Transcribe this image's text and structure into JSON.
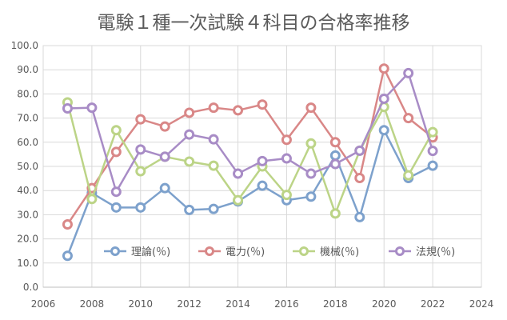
{
  "chart_data": {
    "type": "scatter",
    "title": "電験１種一次試験４科目の合格率推移",
    "xlim": [
      2006,
      2024
    ],
    "ylim": [
      0,
      100
    ],
    "x_ticks": [
      "2006",
      "2008",
      "2010",
      "2012",
      "2014",
      "2016",
      "2018",
      "2020",
      "2022",
      "2024"
    ],
    "y_ticks": [
      "0.0",
      "10.0",
      "20.0",
      "30.0",
      "40.0",
      "50.0",
      "60.0",
      "70.0",
      "80.0",
      "90.0",
      "100.0"
    ],
    "grid": true,
    "legend_position": "bottom-inside",
    "x": [
      2007,
      2008,
      2009,
      2010,
      2011,
      2012,
      2013,
      2014,
      2015,
      2016,
      2017,
      2018,
      2019,
      2020,
      2021,
      2022
    ],
    "series": [
      {
        "name": "理論(％)",
        "color": "#7da1cc",
        "values": [
          13,
          39,
          33,
          33,
          41,
          32,
          32.4,
          35.5,
          42,
          36,
          37.5,
          54.5,
          29,
          65,
          45.2,
          50.3
        ]
      },
      {
        "name": "電力(％)",
        "color": "#d98787",
        "values": [
          26,
          41,
          56,
          69.5,
          66.5,
          72.2,
          74.3,
          73.2,
          75.6,
          61,
          74.3,
          60,
          45.2,
          90.5,
          70,
          62
        ]
      },
      {
        "name": "機械(％)",
        "color": "#bcd487",
        "values": [
          76.5,
          36.5,
          65,
          48,
          54,
          52,
          50.3,
          36,
          50,
          38.2,
          59.5,
          30.5,
          56.5,
          74.6,
          46.3,
          64.2
        ]
      },
      {
        "name": "法規(％)",
        "color": "#a88cc6",
        "values": [
          74,
          74.3,
          39.5,
          57,
          54,
          63.2,
          61.2,
          47,
          52.2,
          53.3,
          47,
          51,
          56.5,
          78,
          88.6,
          56.4
        ]
      }
    ]
  }
}
